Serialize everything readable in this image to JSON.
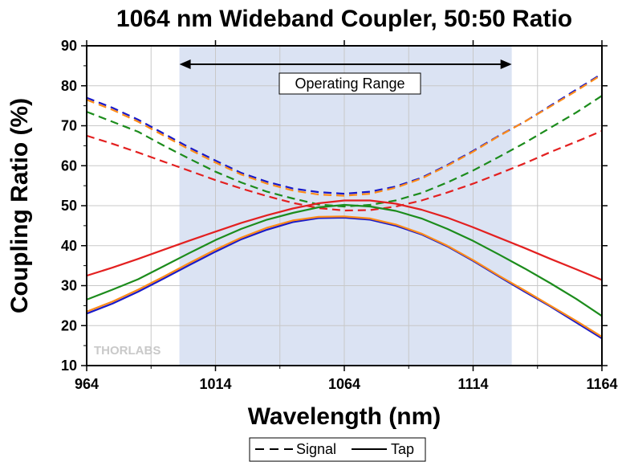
{
  "chart_data": {
    "type": "line",
    "title": "1064 nm Wideband Coupler, 50:50 Ratio",
    "xlabel": "Wavelength (nm)",
    "ylabel": "Coupling Ratio (%)",
    "xlim": [
      964,
      1164
    ],
    "ylim": [
      10,
      90
    ],
    "x_ticks": [
      964,
      1014,
      1064,
      1114,
      1164
    ],
    "y_ticks": [
      10,
      20,
      30,
      40,
      50,
      60,
      70,
      80,
      90
    ],
    "grid": true,
    "watermark": "THORLABS",
    "operating_range": {
      "label": "Operating Range",
      "x_start": 1000,
      "x_end": 1129,
      "color": "#dbe3f3"
    },
    "legend": [
      {
        "label": "Signal",
        "style": "dashed"
      },
      {
        "label": "Tap",
        "style": "solid"
      }
    ],
    "x": [
      964,
      974,
      984,
      994,
      1004,
      1014,
      1024,
      1034,
      1044,
      1054,
      1064,
      1074,
      1084,
      1094,
      1104,
      1114,
      1124,
      1134,
      1144,
      1154,
      1164
    ],
    "series": [
      {
        "group": "Signal",
        "style": "dashed",
        "color": "#1a1ac8",
        "values": [
          77,
          74.5,
          71.5,
          68,
          64.5,
          61.3,
          58.2,
          56,
          54.3,
          53.4,
          53,
          53.5,
          54.8,
          57,
          60.2,
          63.7,
          67.5,
          71,
          75,
          79,
          83
        ]
      },
      {
        "group": "Signal",
        "style": "dashed",
        "color": "#ff8c1a",
        "values": [
          76.5,
          74,
          71,
          67.5,
          64,
          60.8,
          57.8,
          55.5,
          53.8,
          52.8,
          52.5,
          53,
          54.5,
          56.8,
          60,
          63.5,
          67.4,
          71,
          74.8,
          78.7,
          82.8
        ]
      },
      {
        "group": "Signal",
        "style": "dashed",
        "color": "#1c8c1c",
        "values": [
          73.5,
          71,
          68.5,
          65,
          61.7,
          58.5,
          55.8,
          53.5,
          51.8,
          50.3,
          49.8,
          50.2,
          51.3,
          53.2,
          55.8,
          58.8,
          62.2,
          65.7,
          69.5,
          73.3,
          77.5
        ]
      },
      {
        "group": "Signal",
        "style": "dashed",
        "color": "#e32020",
        "values": [
          67.5,
          65.5,
          63.3,
          61,
          58.7,
          56.4,
          54.3,
          52.4,
          50.7,
          49.4,
          48.8,
          48.9,
          49.8,
          51.3,
          53.3,
          55.5,
          58,
          60.6,
          63.4,
          66,
          68.7
        ]
      },
      {
        "group": "Tap",
        "style": "solid",
        "color": "#1a1ac8",
        "values": [
          23,
          25.5,
          28.5,
          31.8,
          35.2,
          38.5,
          41.6,
          44,
          45.9,
          46.9,
          47,
          46.5,
          45,
          42.8,
          39.8,
          36.2,
          32.3,
          28.5,
          24.8,
          20.8,
          16.8
        ]
      },
      {
        "group": "Tap",
        "style": "solid",
        "color": "#ff8c1a",
        "values": [
          23.5,
          26,
          29,
          32.3,
          35.7,
          39,
          42,
          44.5,
          46.3,
          47.2,
          47.3,
          46.8,
          45.3,
          43,
          40,
          36.4,
          32.5,
          28.8,
          25,
          21.2,
          17.2
        ]
      },
      {
        "group": "Tap",
        "style": "solid",
        "color": "#1c8c1c",
        "values": [
          26.5,
          29,
          31.6,
          34.9,
          38.2,
          41.4,
          44.2,
          46.5,
          48.2,
          49.6,
          50.2,
          49.8,
          48.7,
          46.8,
          44.2,
          41.2,
          37.8,
          34.3,
          30.6,
          26.7,
          22.4
        ]
      },
      {
        "group": "Tap",
        "style": "solid",
        "color": "#e32020",
        "values": [
          32.5,
          34.5,
          36.7,
          39,
          41.3,
          43.5,
          45.7,
          47.6,
          49.3,
          50.6,
          51.3,
          51.3,
          50.5,
          49,
          47,
          44.6,
          42,
          39.4,
          36.7,
          34.1,
          31.4
        ]
      }
    ]
  }
}
